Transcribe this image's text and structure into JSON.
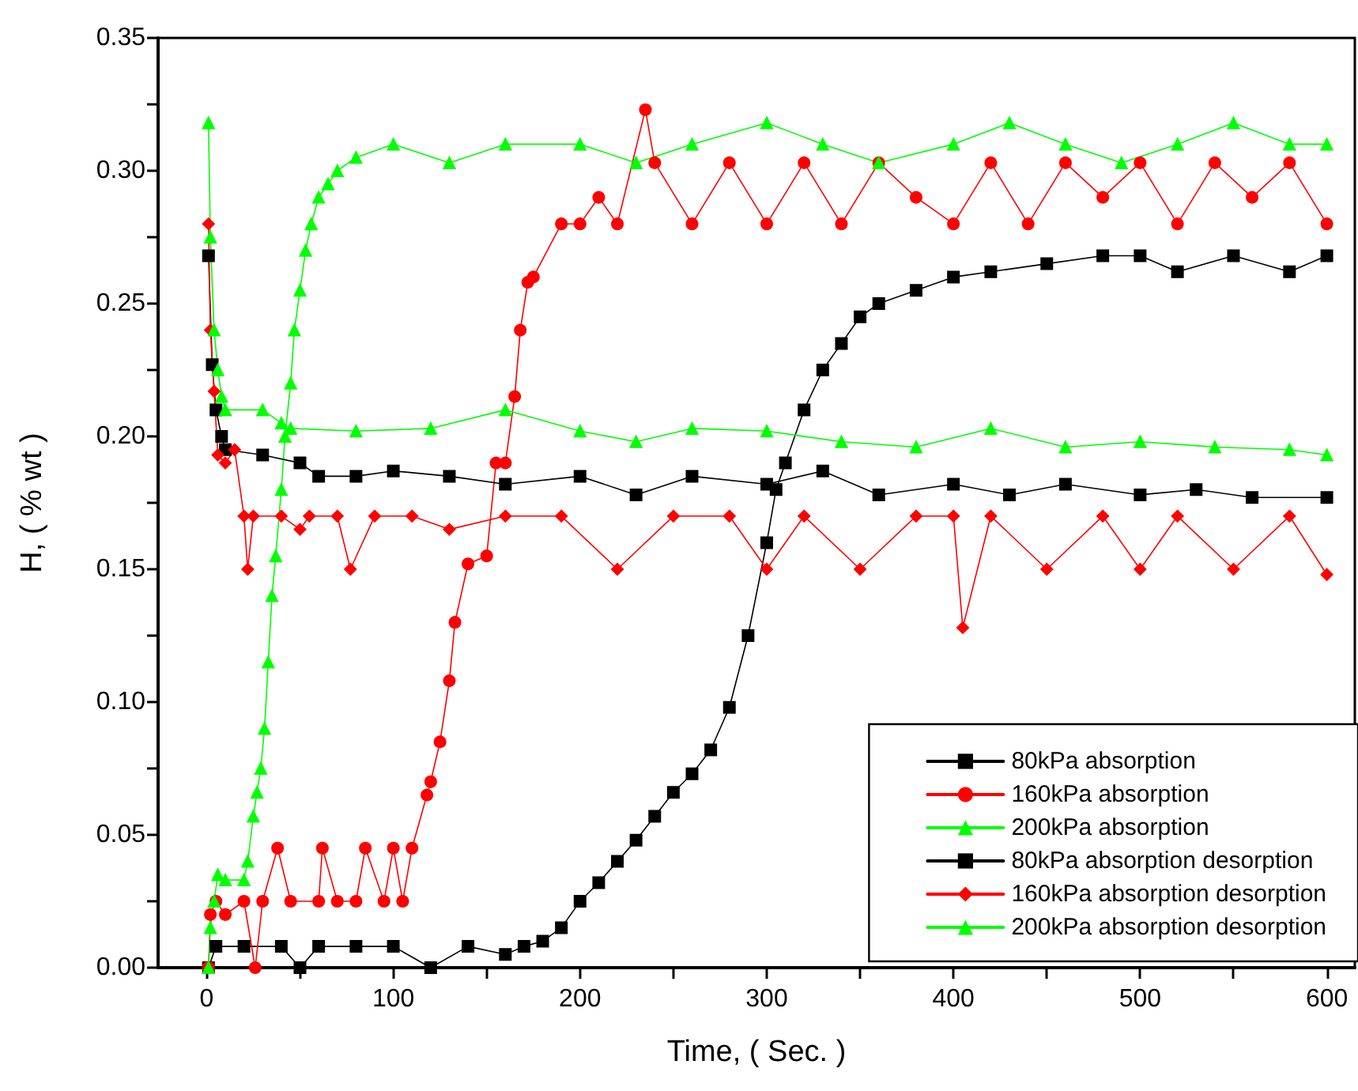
{
  "chart_data": {
    "type": "line",
    "xlabel": "Time, ( Sec. )",
    "ylabel": "H, ( % wt )",
    "xlim": [
      -26,
      615
    ],
    "ylim": [
      0,
      0.35
    ],
    "xticks": [
      0,
      {
        "value": 50,
        "label": null
      },
      100,
      {
        "value": 150,
        "label": null
      },
      200,
      {
        "value": 250,
        "label": null
      },
      300,
      {
        "value": 350,
        "label": null
      },
      400,
      {
        "value": 450,
        "label": null
      },
      500,
      {
        "value": 550,
        "label": null
      },
      600
    ],
    "yticks": [
      {
        "value": 0,
        "label": "0.00"
      },
      {
        "value": 0.025,
        "label": null
      },
      {
        "value": 0.05,
        "label": "0.05"
      },
      {
        "value": 0.075,
        "label": null
      },
      {
        "value": 0.1,
        "label": "0.10"
      },
      {
        "value": 0.125,
        "label": null
      },
      {
        "value": 0.15,
        "label": "0.15"
      },
      {
        "value": 0.175,
        "label": null
      },
      {
        "value": 0.2,
        "label": "0.20"
      },
      {
        "value": 0.225,
        "label": null
      },
      {
        "value": 0.25,
        "label": "0.25"
      },
      {
        "value": 0.275,
        "label": null
      },
      {
        "value": 0.3,
        "label": "0.30"
      },
      {
        "value": 0.325,
        "label": null
      },
      {
        "value": 0.35,
        "label": "0.35"
      }
    ],
    "grid": false,
    "legend": "bottom right",
    "line_style": "solid",
    "series": [
      {
        "name": "80kPa absorption",
        "color": "#000000",
        "marker": "square",
        "x": [
          1,
          5,
          20,
          40,
          50,
          60,
          80,
          100,
          120,
          140,
          160,
          170,
          180,
          190,
          200,
          210,
          220,
          230,
          240,
          250,
          260,
          270,
          280,
          290,
          300,
          305,
          310,
          320,
          330,
          340,
          350,
          360,
          380,
          400,
          420,
          450,
          480,
          500,
          520,
          550,
          580,
          600
        ],
        "values": [
          0,
          0.008,
          0.008,
          0.008,
          0,
          0.008,
          0.008,
          0.008,
          0,
          0.008,
          0.005,
          0.008,
          0.01,
          0.015,
          0.025,
          0.032,
          0.04,
          0.048,
          0.057,
          0.066,
          0.073,
          0.082,
          0.098,
          0.125,
          0.16,
          0.18,
          0.19,
          0.21,
          0.225,
          0.235,
          0.245,
          0.25,
          0.255,
          0.26,
          0.262,
          0.265,
          0.268,
          0.268,
          0.262,
          0.268,
          0.262,
          0.268
        ]
      },
      {
        "name": "160kPa absorption",
        "color": "#ff0000",
        "marker": "circle",
        "x": [
          1,
          2,
          5,
          10,
          20,
          26,
          30,
          38,
          45,
          60,
          62,
          70,
          80,
          85,
          95,
          100,
          105,
          110,
          118,
          120,
          125,
          130,
          133,
          140,
          150,
          155,
          160,
          165,
          168,
          172,
          175,
          190,
          200,
          210,
          220,
          235,
          240,
          260,
          280,
          300,
          320,
          340,
          360,
          380,
          400,
          420,
          440,
          460,
          480,
          500,
          520,
          540,
          560,
          580,
          600
        ],
        "values": [
          0,
          0.02,
          0.025,
          0.02,
          0.025,
          0,
          0.025,
          0.045,
          0.025,
          0.025,
          0.045,
          0.025,
          0.025,
          0.045,
          0.025,
          0.045,
          0.025,
          0.045,
          0.065,
          0.07,
          0.085,
          0.108,
          0.13,
          0.152,
          0.155,
          0.19,
          0.19,
          0.215,
          0.24,
          0.258,
          0.26,
          0.28,
          0.28,
          0.29,
          0.28,
          0.323,
          0.303,
          0.28,
          0.303,
          0.28,
          0.303,
          0.28,
          0.303,
          0.29,
          0.28,
          0.303,
          0.28,
          0.303,
          0.29,
          0.303,
          0.28,
          0.303,
          0.29,
          0.303,
          0.28
        ]
      },
      {
        "name": "200kPa absorption",
        "color": "#00ff00",
        "marker": "triangle",
        "x": [
          1,
          2,
          4,
          6,
          10,
          20,
          22,
          25,
          27,
          29,
          31,
          33,
          35,
          37,
          40,
          42,
          45,
          47,
          50,
          53,
          56,
          60,
          65,
          70,
          80,
          100,
          130,
          160,
          200,
          230,
          260,
          300,
          330,
          360,
          400,
          430,
          460,
          490,
          520,
          550,
          580,
          600
        ],
        "values": [
          0,
          0.015,
          0.025,
          0.035,
          0.033,
          0.033,
          0.04,
          0.057,
          0.066,
          0.075,
          0.09,
          0.115,
          0.14,
          0.155,
          0.18,
          0.2,
          0.22,
          0.24,
          0.255,
          0.27,
          0.28,
          0.29,
          0.295,
          0.3,
          0.305,
          0.31,
          0.303,
          0.31,
          0.31,
          0.303,
          0.31,
          0.318,
          0.31,
          0.303,
          0.31,
          0.318,
          0.31,
          0.303,
          0.31,
          0.318,
          0.31,
          0.31
        ]
      },
      {
        "name": "80kPa absorption desorption",
        "color": "#000000",
        "marker": "square",
        "x": [
          1,
          3,
          5,
          8,
          10,
          30,
          50,
          60,
          80,
          100,
          130,
          160,
          200,
          230,
          260,
          300,
          330,
          360,
          400,
          430,
          460,
          500,
          530,
          560,
          600
        ],
        "values": [
          0.268,
          0.227,
          0.21,
          0.2,
          0.195,
          0.193,
          0.19,
          0.185,
          0.185,
          0.187,
          0.185,
          0.182,
          0.185,
          0.178,
          0.185,
          0.182,
          0.187,
          0.178,
          0.182,
          0.178,
          0.182,
          0.178,
          0.18,
          0.177,
          0.177
        ]
      },
      {
        "name": "160kPa absorption desorption",
        "color": "#ff0000",
        "marker": "diamond",
        "x": [
          1,
          2,
          4,
          6,
          10,
          15,
          20,
          22,
          25,
          40,
          50,
          55,
          70,
          77,
          90,
          110,
          130,
          160,
          190,
          220,
          250,
          280,
          300,
          320,
          350,
          380,
          400,
          405,
          420,
          450,
          480,
          500,
          520,
          550,
          580,
          600
        ],
        "values": [
          0.28,
          0.24,
          0.217,
          0.193,
          0.19,
          0.195,
          0.17,
          0.15,
          0.17,
          0.17,
          0.165,
          0.17,
          0.17,
          0.15,
          0.17,
          0.17,
          0.165,
          0.17,
          0.17,
          0.15,
          0.17,
          0.17,
          0.15,
          0.17,
          0.15,
          0.17,
          0.17,
          0.128,
          0.17,
          0.15,
          0.17,
          0.15,
          0.17,
          0.15,
          0.17,
          0.148
        ]
      },
      {
        "name": "200kPa absorption desorption",
        "color": "#00ff00",
        "marker": "triangle",
        "x": [
          1,
          2,
          4,
          6,
          8,
          10,
          30,
          40,
          45,
          80,
          120,
          160,
          200,
          230,
          260,
          300,
          340,
          380,
          420,
          460,
          500,
          540,
          580,
          600
        ],
        "values": [
          0.318,
          0.275,
          0.24,
          0.225,
          0.215,
          0.21,
          0.21,
          0.205,
          0.203,
          0.202,
          0.203,
          0.21,
          0.202,
          0.198,
          0.203,
          0.202,
          0.198,
          0.196,
          0.203,
          0.196,
          0.198,
          0.196,
          0.195,
          0.193
        ]
      }
    ]
  }
}
